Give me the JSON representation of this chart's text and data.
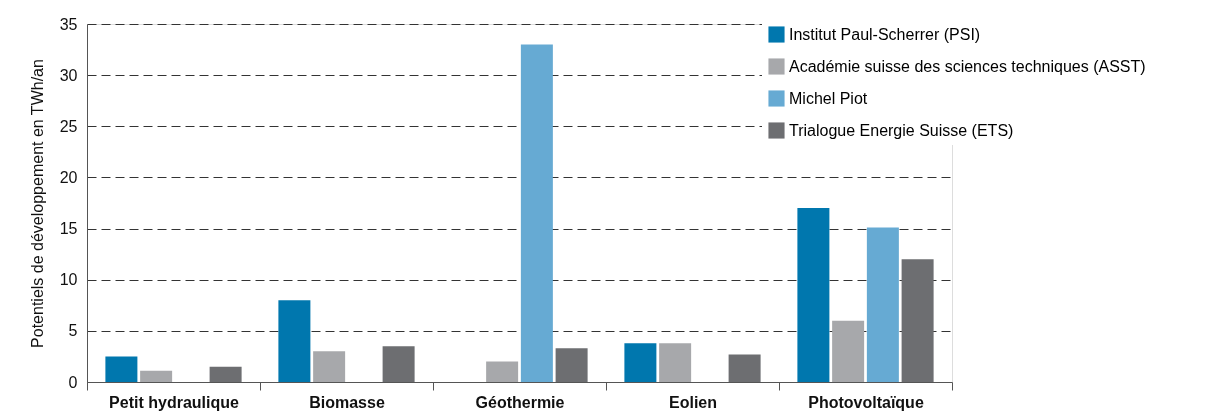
{
  "chart_data": {
    "type": "bar",
    "ylabel": "Potentiels de développement en TWh/an",
    "categories": [
      "Petit hydraulique",
      "Biomasse",
      "Géothermie",
      "Eolien",
      "Photovoltaïque"
    ],
    "series": [
      {
        "name": "Institut Paul-Scherrer (PSI)",
        "color": "#0077ae",
        "values": [
          2.5,
          8,
          0,
          3.8,
          17
        ]
      },
      {
        "name": "Académie suisse des sciences techniques (ASST)",
        "color": "#a7a8ab",
        "values": [
          1.1,
          3,
          2,
          3.8,
          6
        ]
      },
      {
        "name": "Michel Piot",
        "color": "#66aad3",
        "values": [
          0,
          0,
          33,
          0,
          15.1
        ]
      },
      {
        "name": "Trialogue Energie Suisse (ETS)",
        "color": "#6d6e71",
        "values": [
          1.5,
          3.5,
          3.3,
          2.7,
          12
        ]
      }
    ],
    "ylim": [
      0,
      35
    ],
    "yticks": [
      0,
      5,
      10,
      15,
      20,
      25,
      30,
      35
    ],
    "grid": "y",
    "legend": "top right"
  }
}
